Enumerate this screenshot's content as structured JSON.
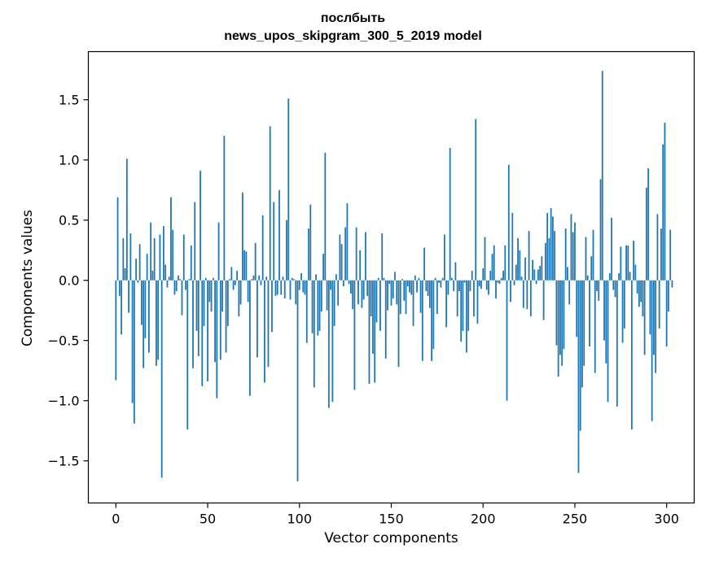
{
  "chart_data": {
    "type": "bar",
    "title": "послбыть",
    "subtitle": "news_upos_skipgram_300_5_2019 model",
    "xlabel": "Vector components",
    "ylabel": "Components values",
    "xlim": [
      -15,
      315
    ],
    "ylim": [
      -1.85,
      1.9
    ],
    "xticks": [
      0,
      50,
      100,
      150,
      200,
      250,
      300
    ],
    "yticks": [
      -1.5,
      -1.0,
      -0.5,
      0.0,
      0.5,
      1.0,
      1.5
    ],
    "xtick_labels": [
      "0",
      "50",
      "100",
      "150",
      "200",
      "250",
      "300"
    ],
    "ytick_labels": [
      "−1.5",
      "−1.0",
      "−0.5",
      "0.0",
      "0.5",
      "1.0",
      "1.5"
    ],
    "bar_color": "#1f77b4",
    "values": [
      -0.83,
      0.69,
      -0.13,
      -0.45,
      0.35,
      0.1,
      1.01,
      -0.27,
      0.39,
      -1.02,
      -1.19,
      0.18,
      -0.02,
      0.3,
      -0.37,
      -0.73,
      -0.48,
      0.22,
      -0.6,
      0.48,
      0.08,
      0.35,
      -0.71,
      -0.66,
      0.38,
      -1.64,
      0.45,
      0.13,
      -0.06,
      0.03,
      0.69,
      0.42,
      -0.12,
      -0.09,
      0.04,
      0.01,
      -0.29,
      0.38,
      -0.08,
      -1.24,
      0.01,
      0.29,
      -0.73,
      0.65,
      -0.42,
      -0.63,
      0.91,
      -0.88,
      -0.38,
      0.02,
      -0.84,
      -0.18,
      -0.26,
      0.02,
      -0.68,
      -0.98,
      0.48,
      -0.66,
      -0.26,
      1.2,
      -0.6,
      -0.38,
      0.01,
      0.11,
      -0.08,
      -0.04,
      0.08,
      -0.3,
      -0.2,
      0.73,
      0.25,
      0.24,
      -0.18,
      -0.96,
      0.01,
      0.04,
      0.31,
      -0.64,
      0.04,
      -0.04,
      0.54,
      -0.85,
      0.03,
      -0.72,
      1.28,
      -0.43,
      0.65,
      -0.13,
      -0.12,
      0.75,
      -0.12,
      0.03,
      -0.15,
      0.5,
      1.51,
      -0.16,
      0.02,
      0.01,
      -0.2,
      -1.67,
      -0.08,
      0.06,
      -0.1,
      -0.12,
      -0.52,
      0.43,
      0.63,
      -0.44,
      -0.89,
      0.05,
      -0.46,
      -0.42,
      -0.26,
      0.22,
      1.06,
      -0.25,
      -1.06,
      -0.08,
      -1.01,
      -0.38,
      0.05,
      -0.21,
      0.38,
      0.3,
      -0.05,
      0.44,
      0.64,
      -0.03,
      -0.11,
      -0.24,
      -0.91,
      0.44,
      -0.2,
      0.25,
      -0.23,
      -0.16,
      0.4,
      -0.13,
      -0.86,
      -0.3,
      -0.61,
      -0.85,
      -0.35,
      0.02,
      -0.42,
      0.39,
      0.02,
      -0.65,
      -0.25,
      -0.03,
      -0.21,
      -0.15,
      0.07,
      -0.2,
      -0.72,
      -0.28,
      0.01,
      -0.17,
      -0.28,
      -0.05,
      -0.1,
      -0.12,
      -0.38,
      0.04,
      -0.1,
      0.02,
      -0.27,
      -0.67,
      0.27,
      -0.09,
      -0.13,
      -0.23,
      -0.67,
      -0.57,
      0.02,
      -0.28,
      -0.02,
      -0.06,
      0.02,
      0.38,
      -0.39,
      -0.12,
      1.1,
      0.02,
      -0.09,
      0.15,
      -0.3,
      -0.09,
      -0.51,
      -0.42,
      -0.02,
      -0.6,
      -0.42,
      -0.09,
      0.08,
      -0.3,
      1.34,
      -0.36,
      -0.05,
      -0.07,
      0.1,
      0.36,
      -0.08,
      -0.12,
      0.08,
      0.22,
      0.29,
      -0.15,
      -0.02,
      -0.03,
      0.02,
      0.08,
      0.29,
      -1.0,
      0.96,
      -0.18,
      0.56,
      -0.04,
      0.13,
      0.35,
      0.25,
      0.03,
      -0.23,
      0.19,
      -0.24,
      0.41,
      -0.3,
      0.17,
      0.09,
      -0.03,
      0.09,
      0.12,
      0.2,
      -0.33,
      0.31,
      0.56,
      0.35,
      0.6,
      0.53,
      0.41,
      -0.54,
      -0.8,
      -0.62,
      -0.71,
      -0.57,
      0.43,
      0.11,
      -0.2,
      0.55,
      0.4,
      0.48,
      -0.47,
      -1.6,
      -1.25,
      -0.89,
      -0.71,
      0.36,
      0.04,
      -0.55,
      0.2,
      0.42,
      -0.77,
      -0.09,
      -0.17,
      0.84,
      1.74,
      -0.5,
      -0.69,
      -1.01,
      0.06,
      0.52,
      -0.08,
      -0.14,
      -1.05,
      0.06,
      0.28,
      -0.52,
      -0.4,
      0.29,
      0.29,
      0.07,
      -1.24,
      0.33,
      0.13,
      -0.11,
      -0.22,
      -0.18,
      -0.3,
      -0.62,
      0.77,
      0.93,
      -0.45,
      -1.17,
      -0.62,
      -0.77,
      0.55,
      -0.4,
      0.43,
      1.13,
      1.31,
      -0.55,
      -0.26,
      0.42,
      -0.06
    ]
  }
}
